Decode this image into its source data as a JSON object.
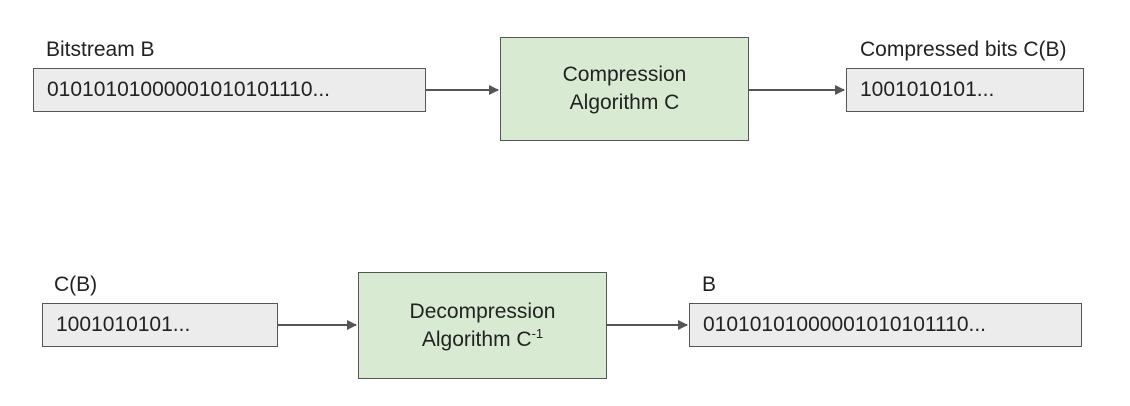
{
  "row1": {
    "input_label": "Bitstream B",
    "input_bits": "01010101000001010101110...",
    "algo_line1": "Compression",
    "algo_line2": "Algorithm C",
    "output_label": "Compressed bits C(B)",
    "output_bits": "1001010101..."
  },
  "row2": {
    "input_label": "C(B)",
    "input_bits": "1001010101...",
    "algo_line1": "Decompression",
    "algo_line2": "Algorithm C",
    "algo_superscript": "-1",
    "output_label": "B",
    "output_bits": "01010101000001010101110..."
  },
  "colors": {
    "bit_box_fill": "#ececec",
    "algorithm_fill": "#d9ead3",
    "stroke": "#555555"
  }
}
